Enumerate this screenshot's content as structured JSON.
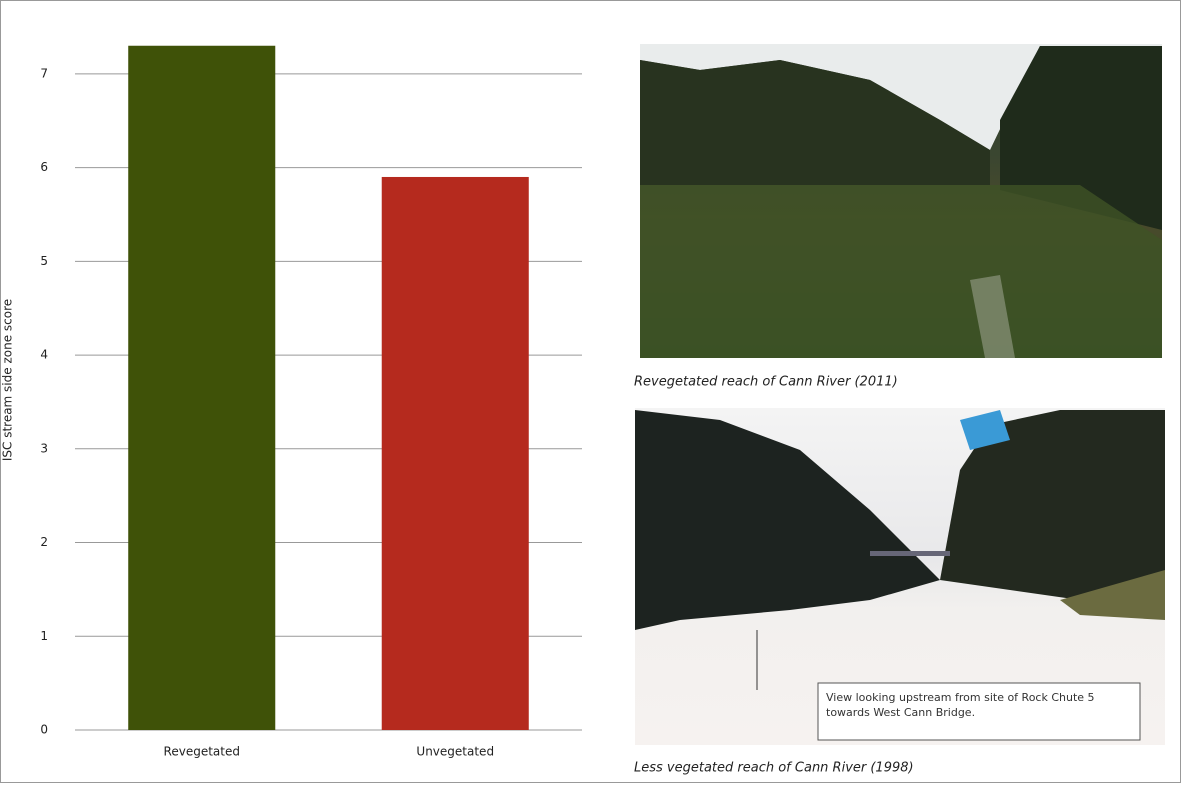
{
  "chart_data": {
    "type": "bar",
    "y_label": "ISC stream side zone score",
    "categories": [
      "Revegetated",
      "Unvegetated"
    ],
    "values": [
      7.3,
      5.9
    ],
    "colors": [
      "#3f5208",
      "#b52a1e"
    ],
    "ylim": [
      0,
      7.5
    ],
    "yticks": [
      0,
      1,
      2,
      3,
      4,
      5,
      6,
      7
    ],
    "grid": true
  },
  "photos": [
    {
      "caption": "Revegetated reach of Cann River (2011)"
    },
    {
      "caption": "Less vegetated reach of Cann River (1998)",
      "inset": "View looking upstream from site of Rock Chute 5 towards West Cann Bridge."
    }
  ]
}
